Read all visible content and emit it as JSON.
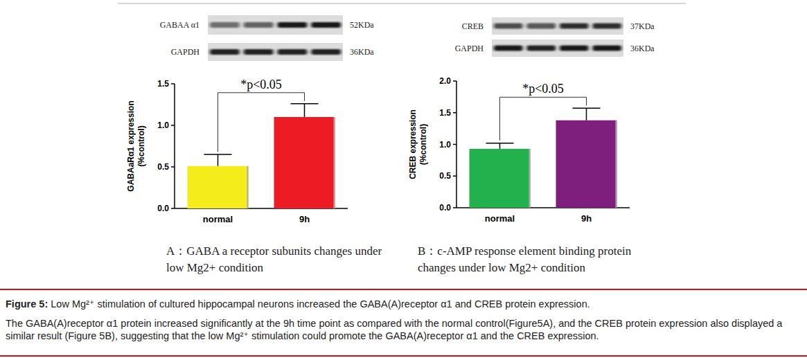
{
  "chart_data": [
    {
      "type": "bar",
      "title": "A：GABA a receptor subunits changes under\nlow Mg2+ condition",
      "y_label": "GABAaRα1 expression\n(%control)",
      "categories": [
        "normal",
        "9h"
      ],
      "values": [
        0.51,
        1.1
      ],
      "errors": [
        0.14,
        0.16
      ],
      "colors": [
        "#f5ec1c",
        "#ed1c24"
      ],
      "ylim": [
        0,
        1.5
      ],
      "yticks": [
        {
          "value": 0,
          "label": "0.0"
        },
        {
          "value": 0.5,
          "label": "0.5"
        },
        {
          "value": 1,
          "label": "1.0"
        },
        {
          "value": 1.5,
          "label": "1.5"
        }
      ],
      "annotations": [
        {
          "text": "*p<0.05"
        }
      ]
    },
    {
      "type": "bar",
      "title": "B：c-AMP response element binding protein\nchanges under low Mg2+ condition",
      "y_label": "CREB expression\n(%control)",
      "categories": [
        "normal",
        "9h"
      ],
      "values": [
        0.93,
        1.38
      ],
      "errors": [
        0.09,
        0.19
      ],
      "colors": [
        "#22b14c",
        "#7f1f7d"
      ],
      "ylim": [
        0,
        2
      ],
      "yticks": [
        {
          "value": 0,
          "label": "0.0"
        },
        {
          "value": 0.5,
          "label": "0.5"
        },
        {
          "value": 1,
          "label": "1.0"
        },
        {
          "value": 1.5,
          "label": "1.5"
        },
        {
          "value": 2,
          "label": "2.0"
        }
      ],
      "annotations": [
        {
          "text": "*p<0.05"
        }
      ]
    }
  ],
  "blots": [
    [
      {
        "label": "GABAA α1",
        "size": "52KDa"
      },
      {
        "label": "GAPDH",
        "size": "36KDa"
      }
    ],
    [
      {
        "label": "CREB",
        "size": "37KDa"
      },
      {
        "label": "GAPDH",
        "size": "36KDa"
      }
    ]
  ],
  "figure_caption": {
    "label": "Figure 5:",
    "title": "Low Mg²⁺ stimulation of cultured hippocampal neurons increased the GABA(A)receptor α1 and CREB protein expression.",
    "text": "The GABA(A)receptor α1 protein increased significantly at the 9h time point as compared with the normal control(Figure5A), and the CREB protein expression also displayed a similar result (Figure 5B), suggesting that the low Mg²⁺ stimulation could promote the GABA(A)receptor α1 and the CREB expression."
  }
}
